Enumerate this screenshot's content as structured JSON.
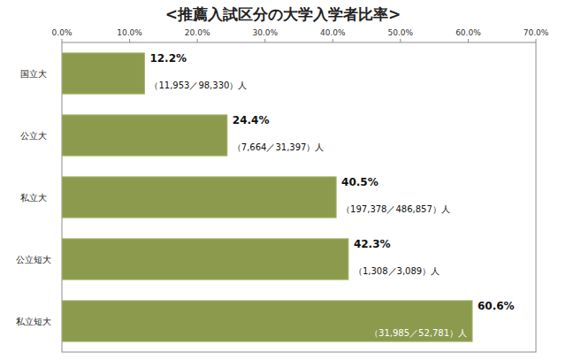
{
  "chart_data": {
    "type": "bar",
    "title": "<推薦入試区分の大学入学者比率>",
    "orientation": "horizontal",
    "categories": [
      "国立大",
      "公立大",
      "私立大",
      "公立短大",
      "私立短大"
    ],
    "values": [
      12.2,
      24.4,
      40.5,
      42.3,
      60.6
    ],
    "value_labels": [
      "12.2%",
      "24.4%",
      "40.5%",
      "42.3%",
      "60.6%"
    ],
    "annotations": [
      "（11,953／98,330）人",
      "（7,664／31,397）人",
      "（197,378／486,857）人",
      "（1,308／3,089）人",
      "（31,985／52,781）人"
    ],
    "color": "#8b9a4c",
    "xlim": [
      0,
      70
    ],
    "xticks": [
      {
        "value": 0,
        "label": "0.0%"
      },
      {
        "value": 10,
        "label": "10.0%"
      },
      {
        "value": 20,
        "label": "20.0%"
      },
      {
        "value": 30,
        "label": "30.0%"
      },
      {
        "value": 40,
        "label": "40.0%"
      },
      {
        "value": 50,
        "label": "50.0%"
      },
      {
        "value": 60,
        "label": "60.0%"
      },
      {
        "value": 70,
        "label": "70.0%"
      }
    ],
    "grid": false,
    "data_labels": true
  }
}
